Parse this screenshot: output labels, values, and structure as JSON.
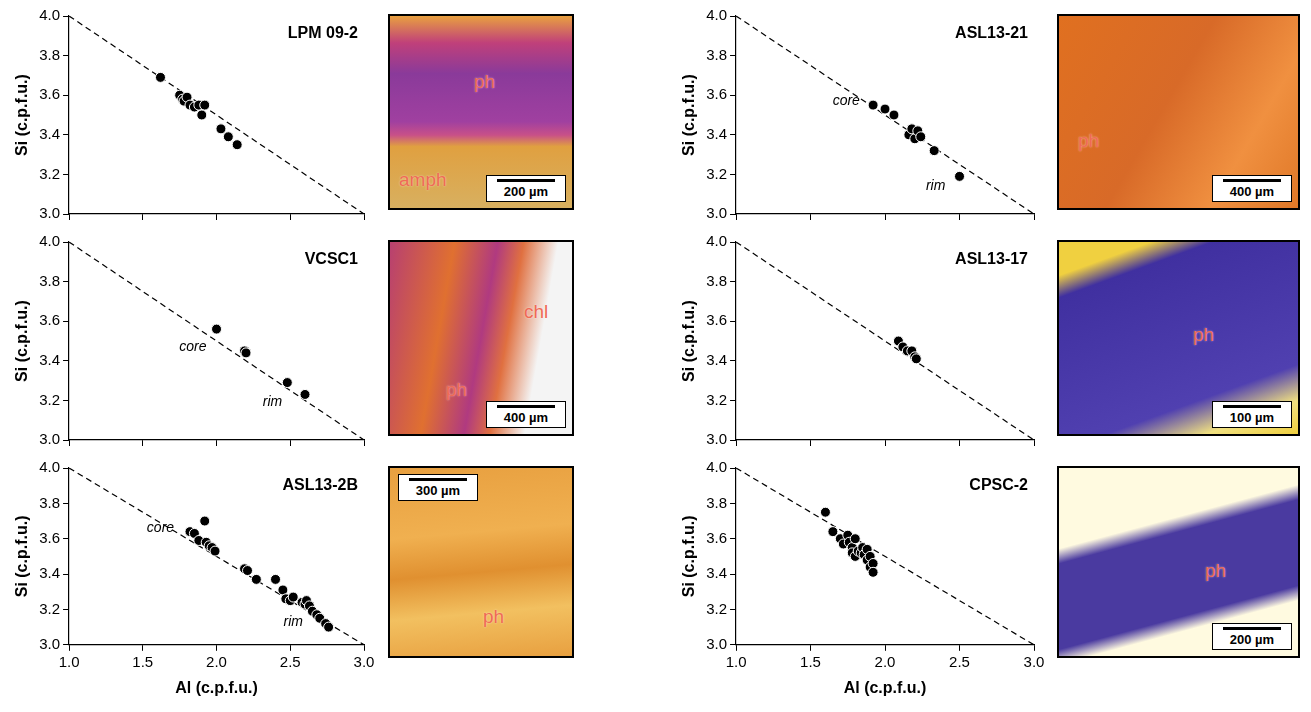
{
  "chart_data": [
    {
      "type": "scatter",
      "title": "LPM 09-2",
      "y_label": "Si (c.p.f.u.)",
      "xlim": [
        1.0,
        3.0
      ],
      "ylim": [
        3.0,
        4.0
      ],
      "xticks": [
        {
          "value": 1.0,
          "label": "1.0"
        },
        {
          "value": 1.5,
          "label": "1.5"
        },
        {
          "value": 2.0,
          "label": "2.0"
        },
        {
          "value": 2.5,
          "label": "2.5"
        },
        {
          "value": 3.0,
          "label": "3.0"
        }
      ],
      "yticks": [
        {
          "value": 3.0,
          "label": "3.0"
        },
        3.2,
        3.4,
        3.6,
        3.8,
        {
          "value": 4.0,
          "label": "4.0"
        }
      ],
      "tick_labels": "y",
      "grid": false,
      "series": [
        {
          "type": "scatter",
          "marker": "circle",
          "color": "#000000",
          "x": [
            1.62,
            1.75,
            1.77,
            1.78,
            1.8,
            1.82,
            1.85,
            1.88,
            1.92,
            1.9,
            2.03,
            2.08,
            2.14
          ],
          "values": [
            3.69,
            3.6,
            3.58,
            3.57,
            3.59,
            3.55,
            3.54,
            3.55,
            3.55,
            3.5,
            3.43,
            3.39,
            3.35
          ]
        },
        {
          "type": "line",
          "line_style": "dashed",
          "color": "#000000",
          "x": [
            1.0,
            3.0
          ],
          "values": [
            4.0,
            3.0
          ]
        }
      ],
      "annotations": [],
      "micrograph": {
        "labels": [
          "ph",
          "amph"
        ],
        "scale_bar": "200 µm"
      }
    },
    {
      "type": "scatter",
      "title": "VCSC1",
      "y_label": "Si (c.p.f.u.)",
      "xlim": [
        1.0,
        3.0
      ],
      "ylim": [
        3.0,
        4.0
      ],
      "xticks": [
        {
          "value": 1.0,
          "label": "1.0"
        },
        {
          "value": 1.5,
          "label": "1.5"
        },
        {
          "value": 2.0,
          "label": "2.0"
        },
        {
          "value": 2.5,
          "label": "2.5"
        },
        {
          "value": 3.0,
          "label": "3.0"
        }
      ],
      "yticks": [
        {
          "value": 3.0,
          "label": "3.0"
        },
        3.2,
        3.4,
        3.6,
        3.8,
        {
          "value": 4.0,
          "label": "4.0"
        }
      ],
      "tick_labels": "y",
      "grid": false,
      "series": [
        {
          "type": "scatter",
          "marker": "circle",
          "color": "#000000",
          "x": [
            2.0,
            2.19,
            2.2,
            2.48,
            2.6
          ],
          "values": [
            3.56,
            3.45,
            3.44,
            3.29,
            3.23
          ]
        },
        {
          "type": "line",
          "line_style": "dashed",
          "color": "#000000",
          "x": [
            1.0,
            3.0
          ],
          "values": [
            4.0,
            3.0
          ]
        }
      ],
      "annotations": [
        {
          "text": "core",
          "x": 1.84,
          "y": 3.47
        },
        {
          "text": "rim",
          "x": 2.38,
          "y": 3.19
        }
      ],
      "micrograph": {
        "labels": [
          "chl",
          "ph"
        ],
        "scale_bar": "400 µm"
      }
    },
    {
      "type": "scatter",
      "title": "ASL13-2B",
      "y_label": "Si (c.p.f.u.)",
      "x_label": "Al (c.p.f.u.)",
      "xlim": [
        1.0,
        3.0
      ],
      "ylim": [
        3.0,
        4.0
      ],
      "xticks": [
        {
          "value": 1.0,
          "label": "1.0"
        },
        {
          "value": 1.5,
          "label": "1.5"
        },
        {
          "value": 2.0,
          "label": "2.0"
        },
        {
          "value": 2.5,
          "label": "2.5"
        },
        {
          "value": 3.0,
          "label": "3.0"
        }
      ],
      "yticks": [
        {
          "value": 3.0,
          "label": "3.0"
        },
        3.2,
        3.4,
        3.6,
        3.8,
        {
          "value": 4.0,
          "label": "4.0"
        }
      ],
      "tick_labels": true,
      "grid": false,
      "series": [
        {
          "type": "scatter",
          "marker": "circle",
          "color": "#000000",
          "x": [
            1.82,
            1.85,
            1.88,
            1.92,
            1.93,
            1.95,
            1.97,
            1.99,
            2.19,
            2.21,
            2.27,
            2.4,
            2.45,
            2.47,
            2.5,
            2.52,
            2.58,
            2.6,
            2.61,
            2.63,
            2.65,
            2.68,
            2.7,
            2.74,
            2.76
          ],
          "values": [
            3.64,
            3.63,
            3.59,
            3.7,
            3.58,
            3.56,
            3.55,
            3.53,
            3.43,
            3.42,
            3.37,
            3.37,
            3.31,
            3.26,
            3.25,
            3.27,
            3.24,
            3.23,
            3.25,
            3.22,
            3.19,
            3.17,
            3.15,
            3.12,
            3.1
          ]
        },
        {
          "type": "line",
          "line_style": "dashed",
          "color": "#000000",
          "x": [
            1.0,
            3.0
          ],
          "values": [
            4.0,
            3.0
          ]
        }
      ],
      "annotations": [
        {
          "text": "core",
          "x": 1.62,
          "y": 3.66
        },
        {
          "text": "rim",
          "x": 2.52,
          "y": 3.13
        }
      ],
      "micrograph": {
        "labels": [
          "ph"
        ],
        "scale_bar": "300 µm"
      }
    },
    {
      "type": "scatter",
      "title": "ASL13-21",
      "y_label": "Si (c.p.f.u.)",
      "xlim": [
        1.0,
        3.0
      ],
      "ylim": [
        3.0,
        4.0
      ],
      "xticks": [
        {
          "value": 1.0,
          "label": "1.0"
        },
        {
          "value": 1.5,
          "label": "1.5"
        },
        {
          "value": 2.0,
          "label": "2.0"
        },
        {
          "value": 2.5,
          "label": "2.5"
        },
        {
          "value": 3.0,
          "label": "3.0"
        }
      ],
      "yticks": [
        {
          "value": 3.0,
          "label": "3.0"
        },
        3.2,
        3.4,
        3.6,
        3.8,
        {
          "value": 4.0,
          "label": "4.0"
        }
      ],
      "tick_labels": "y",
      "grid": false,
      "series": [
        {
          "type": "scatter",
          "marker": "circle",
          "color": "#000000",
          "x": [
            1.92,
            2.0,
            2.06,
            2.16,
            2.18,
            2.2,
            2.22,
            2.24,
            2.33,
            2.5
          ],
          "values": [
            3.55,
            3.53,
            3.5,
            3.4,
            3.43,
            3.38,
            3.42,
            3.39,
            3.32,
            3.19
          ]
        },
        {
          "type": "line",
          "line_style": "dashed",
          "color": "#000000",
          "x": [
            1.0,
            3.0
          ],
          "values": [
            4.0,
            3.0
          ]
        }
      ],
      "annotations": [
        {
          "text": "core",
          "x": 1.74,
          "y": 3.57
        },
        {
          "text": "rim",
          "x": 2.34,
          "y": 3.14
        }
      ],
      "micrograph": {
        "labels": [
          "ph"
        ],
        "scale_bar": "400 µm"
      }
    },
    {
      "type": "scatter",
      "title": "ASL13-17",
      "y_label": "Si (c.p.f.u.)",
      "xlim": [
        1.0,
        3.0
      ],
      "ylim": [
        3.0,
        4.0
      ],
      "xticks": [
        {
          "value": 1.0,
          "label": "1.0"
        },
        {
          "value": 1.5,
          "label": "1.5"
        },
        {
          "value": 2.0,
          "label": "2.0"
        },
        {
          "value": 2.5,
          "label": "2.5"
        },
        {
          "value": 3.0,
          "label": "3.0"
        }
      ],
      "yticks": [
        {
          "value": 3.0,
          "label": "3.0"
        },
        3.2,
        3.4,
        3.6,
        3.8,
        {
          "value": 4.0,
          "label": "4.0"
        }
      ],
      "tick_labels": "y",
      "grid": false,
      "series": [
        {
          "type": "scatter",
          "marker": "circle",
          "color": "#000000",
          "x": [
            2.09,
            2.12,
            2.15,
            2.18,
            2.2,
            2.21
          ],
          "values": [
            3.5,
            3.47,
            3.45,
            3.45,
            3.42,
            3.41
          ]
        },
        {
          "type": "line",
          "line_style": "dashed",
          "color": "#000000",
          "x": [
            1.0,
            3.0
          ],
          "values": [
            4.0,
            3.0
          ]
        }
      ],
      "annotations": [],
      "micrograph": {
        "labels": [
          "ph"
        ],
        "scale_bar": "100 µm"
      }
    },
    {
      "type": "scatter",
      "title": "CPSC-2",
      "y_label": "Si (c.p.f.u.)",
      "x_label": "Al (c.p.f.u.)",
      "xlim": [
        1.0,
        3.0
      ],
      "ylim": [
        3.0,
        4.0
      ],
      "xticks": [
        {
          "value": 1.0,
          "label": "1.0"
        },
        {
          "value": 1.5,
          "label": "1.5"
        },
        {
          "value": 2.0,
          "label": "2.0"
        },
        {
          "value": 2.5,
          "label": "2.5"
        },
        {
          "value": 3.0,
          "label": "3.0"
        }
      ],
      "yticks": [
        {
          "value": 3.0,
          "label": "3.0"
        },
        3.2,
        3.4,
        3.6,
        3.8,
        {
          "value": 4.0,
          "label": "4.0"
        }
      ],
      "tick_labels": true,
      "grid": false,
      "series": [
        {
          "type": "scatter",
          "marker": "circle",
          "color": "#000000",
          "x": [
            1.6,
            1.65,
            1.7,
            1.72,
            1.75,
            1.76,
            1.78,
            1.78,
            1.8,
            1.8,
            1.82,
            1.84,
            1.85,
            1.86,
            1.88,
            1.88,
            1.9,
            1.9,
            1.92,
            1.92
          ],
          "values": [
            3.75,
            3.64,
            3.6,
            3.57,
            3.62,
            3.58,
            3.55,
            3.52,
            3.6,
            3.5,
            3.53,
            3.52,
            3.55,
            3.51,
            3.54,
            3.48,
            3.5,
            3.44,
            3.46,
            3.41
          ]
        },
        {
          "type": "line",
          "line_style": "dashed",
          "color": "#000000",
          "x": [
            1.0,
            3.0
          ],
          "values": [
            4.0,
            3.0
          ]
        }
      ],
      "annotations": [],
      "micrograph": {
        "labels": [
          "ph"
        ],
        "scale_bar": "200 µm"
      }
    }
  ]
}
